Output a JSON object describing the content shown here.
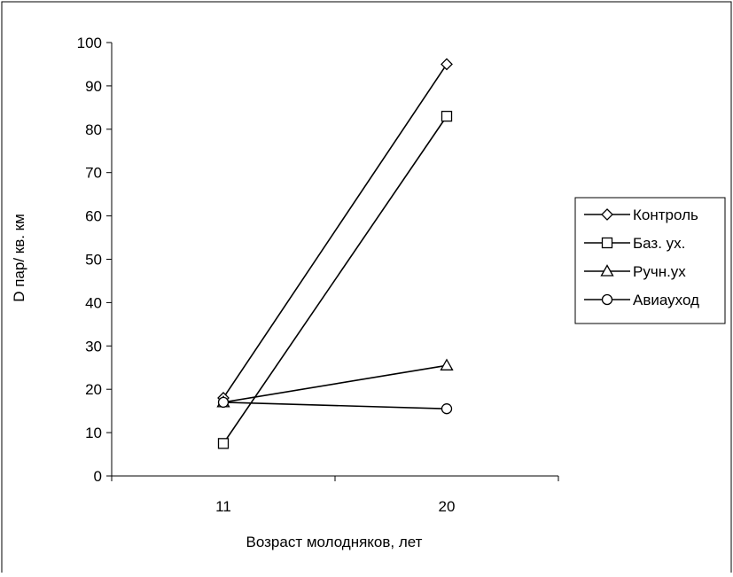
{
  "chart_data": {
    "type": "line",
    "title": "",
    "xlabel": "Возраст молодняков, лет",
    "ylabel": "D  пар/ кв. км",
    "categories": [
      "11",
      "20"
    ],
    "ylim": [
      0,
      100
    ],
    "yticks": [
      0,
      10,
      20,
      30,
      40,
      50,
      60,
      70,
      80,
      90,
      100
    ],
    "grid": false,
    "legend": "right",
    "series": [
      {
        "name": "Контроль",
        "marker": "diamond",
        "values": [
          18,
          95
        ]
      },
      {
        "name": "Баз. ух.",
        "marker": "square",
        "values": [
          7.5,
          83
        ]
      },
      {
        "name": "Ручн.ух",
        "marker": "triangle",
        "values": [
          17,
          25.5
        ]
      },
      {
        "name": "Авиауход",
        "marker": "circle",
        "values": [
          17,
          15.5
        ]
      }
    ]
  }
}
